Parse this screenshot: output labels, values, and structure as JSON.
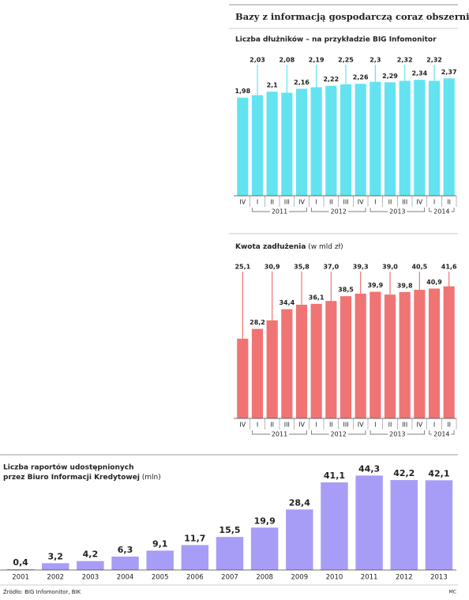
{
  "header": {
    "title": "Bazy z informacją gospodarczą coraz obszerniejsze"
  },
  "chart_data": [
    {
      "type": "bar",
      "title": "Liczba dłużników – na przykładzie BIG Infomonitor",
      "categories": [
        "IV",
        "I",
        "II",
        "III",
        "IV",
        "I",
        "II",
        "III",
        "IV",
        "I",
        "II",
        "III",
        "IV",
        "I",
        "II"
      ],
      "groups": [
        "2011",
        "2012",
        "2013",
        "2014"
      ],
      "values": [
        1.98,
        2.03,
        2.1,
        2.08,
        2.16,
        2.19,
        2.22,
        2.25,
        2.26,
        2.3,
        2.29,
        2.32,
        2.34,
        2.32,
        2.37
      ],
      "value_labels": [
        "1,98",
        "2,03",
        "2,1",
        "2,08",
        "2,16",
        "2,19",
        "2,22",
        "2,25",
        "2,26",
        "2,3",
        "2,29",
        "2,32",
        "2,34",
        "2,32",
        "2,37"
      ],
      "color": "#63e3f0",
      "ylim": [
        0,
        2.9
      ]
    },
    {
      "type": "bar",
      "title": "Kwota zadłużenia",
      "unit": "(w mld zł)",
      "categories": [
        "IV",
        "I",
        "II",
        "III",
        "IV",
        "I",
        "II",
        "III",
        "IV",
        "I",
        "II",
        "III",
        "IV",
        "I",
        "II"
      ],
      "groups": [
        "2011",
        "2012",
        "2013",
        "2014"
      ],
      "values": [
        25.1,
        28.2,
        30.9,
        34.4,
        35.8,
        36.1,
        37.0,
        38.5,
        39.3,
        39.9,
        39.0,
        39.8,
        40.5,
        40.9,
        41.6
      ],
      "value_labels": [
        "25,1",
        "28,2",
        "30,9",
        "34,4",
        "35,8",
        "36,1",
        "37,0",
        "38,5",
        "39,3",
        "39,9",
        "39,0",
        "39,8",
        "40,5",
        "40,9",
        "41,6"
      ],
      "color": "#f07474",
      "ylim": [
        0,
        46
      ]
    },
    {
      "type": "bar",
      "title": [
        "Liczba raportów udostępnionych",
        "przez Biuro Informacji Kredytowej"
      ],
      "unit": "(mln)",
      "categories": [
        "2001",
        "2002",
        "2003",
        "2004",
        "2005",
        "2006",
        "2007",
        "2008",
        "2009",
        "2010",
        "2011",
        "2012",
        "2013"
      ],
      "values": [
        0.4,
        3.2,
        4.2,
        6.3,
        9.1,
        11.7,
        15.5,
        19.9,
        28.4,
        41.1,
        44.3,
        42.2,
        42.1
      ],
      "value_labels": [
        "0,4",
        "3,2",
        "4,2",
        "6,3",
        "9,1",
        "11,7",
        "15,5",
        "19,9",
        "28,4",
        "41,1",
        "44,3",
        "42,2",
        "42,1"
      ],
      "color": "#a89df6",
      "ylim": [
        0,
        50
      ]
    }
  ],
  "footer": {
    "source": "Źródło: BIG Infomonitor, BIK",
    "credit": "MC"
  }
}
